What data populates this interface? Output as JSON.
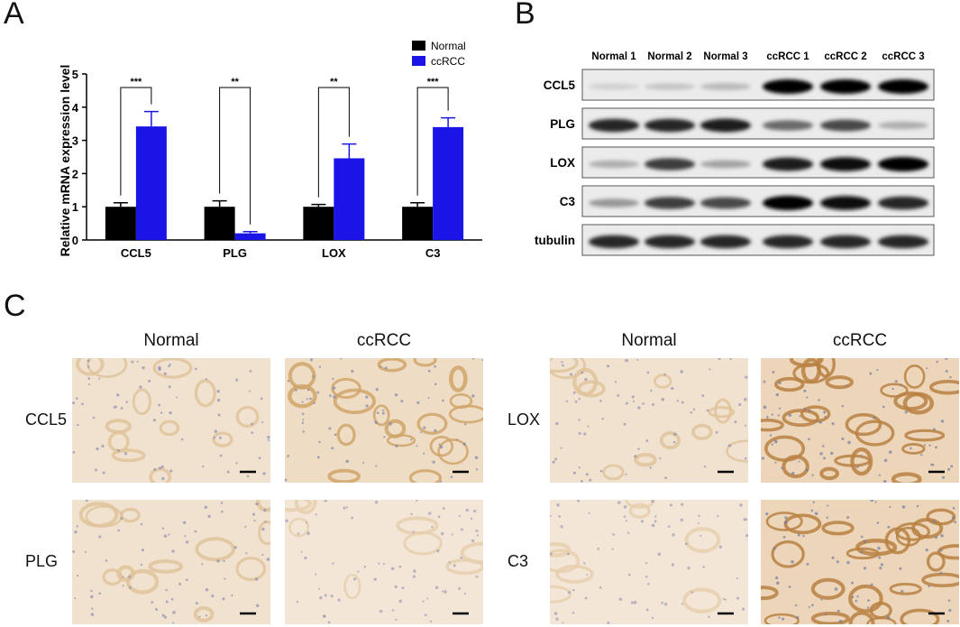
{
  "panels": {
    "a": "A",
    "b": "B",
    "c": "C"
  },
  "colors": {
    "normal": "#000000",
    "ccrcc": "#1a14e6"
  },
  "chart_data": {
    "type": "bar",
    "categories": [
      "CCL5",
      "PLG",
      "LOX",
      "C3"
    ],
    "series": [
      {
        "name": "Normal",
        "values": [
          1.0,
          1.0,
          1.0,
          1.0
        ],
        "errors": [
          0.12,
          0.18,
          0.07,
          0.12
        ]
      },
      {
        "name": "ccRCC",
        "values": [
          3.42,
          0.2,
          2.46,
          3.4
        ],
        "errors": [
          0.45,
          0.05,
          0.43,
          0.28
        ]
      }
    ],
    "significance": [
      "***",
      "**",
      "**",
      "***"
    ],
    "ylabel": "Relative mRNA expression level",
    "xlabel": "",
    "title": "",
    "ylim": [
      0,
      5
    ],
    "yticks": [
      0,
      1,
      2,
      3,
      4,
      5
    ],
    "legend_position": "top-right",
    "grid": false
  },
  "western_blot": {
    "lanes": [
      "Normal 1",
      "Normal 2",
      "Normal 3",
      "ccRCC 1",
      "ccRCC 2",
      "ccRCC 3"
    ],
    "proteins": [
      {
        "name": "CCL5",
        "intensities": [
          0.1,
          0.15,
          0.2,
          1.0,
          1.0,
          1.0
        ]
      },
      {
        "name": "PLG",
        "intensities": [
          0.85,
          0.85,
          0.9,
          0.55,
          0.7,
          0.25
        ]
      },
      {
        "name": "LOX",
        "intensities": [
          0.25,
          0.75,
          0.3,
          0.9,
          0.95,
          1.0
        ]
      },
      {
        "name": "C3",
        "intensities": [
          0.35,
          0.75,
          0.7,
          1.0,
          0.95,
          0.85
        ]
      },
      {
        "name": "tubulin",
        "intensities": [
          0.85,
          0.85,
          0.85,
          0.85,
          0.85,
          0.85
        ]
      }
    ]
  },
  "ihc": {
    "groups": [
      {
        "columns": [
          "Normal",
          "ccRCC"
        ],
        "rows": [
          {
            "label": "CCL5",
            "stain": [
              "light",
              "medium"
            ]
          },
          {
            "label": "PLG",
            "stain": [
              "light",
              "faint"
            ]
          }
        ]
      },
      {
        "columns": [
          "Normal",
          "ccRCC"
        ],
        "rows": [
          {
            "label": "LOX",
            "stain": [
              "light",
              "strong"
            ]
          },
          {
            "label": "C3",
            "stain": [
              "faint",
              "strong"
            ]
          }
        ]
      }
    ]
  }
}
